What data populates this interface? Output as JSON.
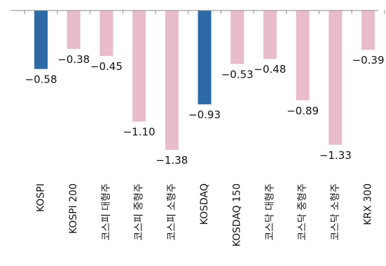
{
  "chart_data": {
    "type": "bar",
    "categories": [
      "KOSPI",
      "KOSPI 200",
      "코스피 대형주",
      "코스피 중형주",
      "코스피 소형주",
      "KOSDAQ",
      "KOSDAQ 150",
      "코스닥 대형주",
      "코스닥 중형주",
      "코스닥 소형주",
      "KRX 300"
    ],
    "values": [
      -0.58,
      -0.38,
      -0.45,
      -1.1,
      -1.38,
      -0.93,
      -0.53,
      -0.48,
      -0.89,
      -1.33,
      -0.39
    ],
    "value_labels": [
      "−0.58",
      "−0.38",
      "−0.45",
      "−1.10",
      "−1.38",
      "−0.93",
      "−0.53",
      "−0.48",
      "−0.89",
      "−1.33",
      "−0.39"
    ],
    "highlight": [
      true,
      false,
      false,
      false,
      false,
      true,
      false,
      false,
      false,
      false,
      false
    ],
    "colors": {
      "highlight": "#2e6aa6",
      "normal": "#e8bcc8",
      "axis": "#888888"
    },
    "ylim": [
      -1.38,
      0
    ],
    "grid": false,
    "legend": "none"
  }
}
